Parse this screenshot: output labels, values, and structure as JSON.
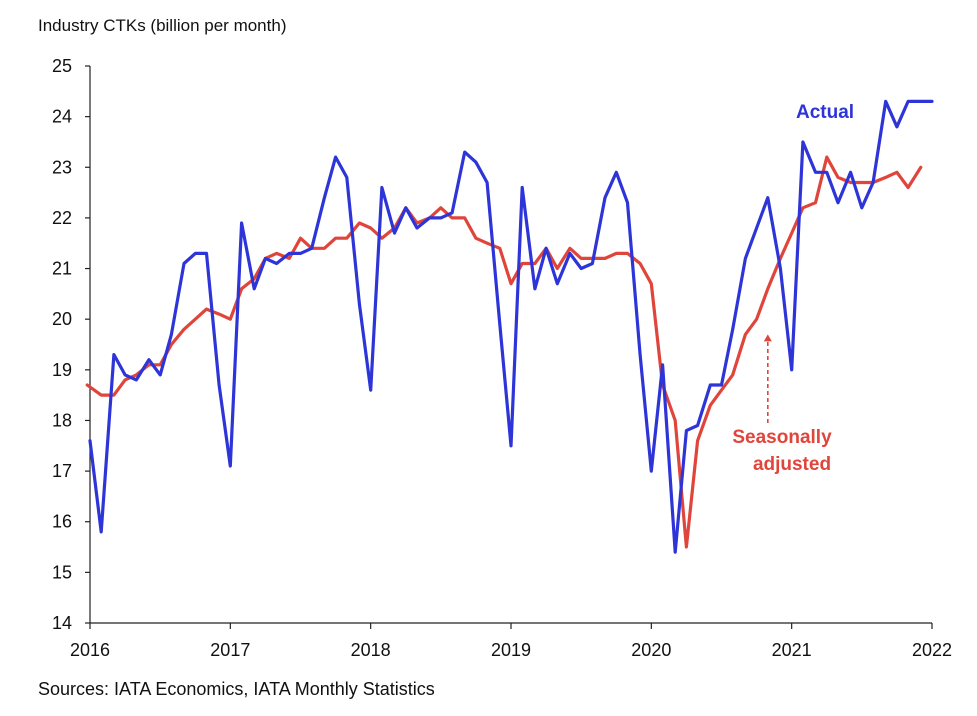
{
  "chart_data": {
    "type": "line",
    "title": "",
    "ylabel": "Industry CTKs (billion per month)",
    "xlabel": "",
    "source": "Sources: IATA Economics, IATA Monthly Statistics",
    "ylim": [
      14,
      25
    ],
    "xlim": [
      2016,
      2022
    ],
    "yticks": [
      "14",
      "15",
      "16",
      "17",
      "18",
      "19",
      "20",
      "21",
      "22",
      "23",
      "24",
      "25"
    ],
    "xticks": [
      "2016",
      "2017",
      "2018",
      "2019",
      "2020",
      "2021",
      "2022"
    ],
    "grid": false,
    "colors": {
      "actual": "#2e35d8",
      "seasonally_adjusted": "#e0453b"
    },
    "annotation": {
      "text_line1": "Seasonally",
      "text_line2": "adjusted",
      "arrow_x": 2020.83,
      "arrow_y_from": 17.95,
      "arrow_y_to": 19.7
    },
    "series": [
      {
        "name": "Actual",
        "x": [
          2016.0,
          2016.08,
          2016.17,
          2016.25,
          2016.33,
          2016.42,
          2016.5,
          2016.58,
          2016.67,
          2016.75,
          2016.83,
          2016.92,
          2017.0,
          2017.08,
          2017.17,
          2017.25,
          2017.33,
          2017.42,
          2017.5,
          2017.58,
          2017.67,
          2017.75,
          2017.83,
          2017.92,
          2018.0,
          2018.08,
          2018.17,
          2018.25,
          2018.33,
          2018.42,
          2018.5,
          2018.58,
          2018.67,
          2018.75,
          2018.83,
          2018.92,
          2019.0,
          2019.08,
          2019.17,
          2019.25,
          2019.33,
          2019.42,
          2019.5,
          2019.58,
          2019.67,
          2019.75,
          2019.83,
          2019.92,
          2020.0,
          2020.08,
          2020.17,
          2020.25,
          2020.33,
          2020.42,
          2020.5,
          2020.58,
          2020.67,
          2020.75,
          2020.83,
          2020.92,
          2021.0,
          2021.08,
          2021.17,
          2021.25,
          2021.33,
          2021.42,
          2021.5,
          2021.58,
          2021.67,
          2021.75,
          2021.83,
          2021.92,
          2022.0
        ],
        "values": [
          17.6,
          15.8,
          19.3,
          18.9,
          18.8,
          19.2,
          18.9,
          19.7,
          21.1,
          21.3,
          21.3,
          18.7,
          17.1,
          21.9,
          20.6,
          21.2,
          21.1,
          21.3,
          21.3,
          21.4,
          22.4,
          23.2,
          22.8,
          20.3,
          18.6,
          22.6,
          21.7,
          22.2,
          21.8,
          22.0,
          22.0,
          22.1,
          23.3,
          23.1,
          22.7,
          19.9,
          17.5,
          22.6,
          20.6,
          21.4,
          20.7,
          21.3,
          21.0,
          21.1,
          22.4,
          22.9,
          22.3,
          19.3,
          17.0,
          19.1,
          15.4,
          17.8,
          17.9,
          18.7,
          18.7,
          19.8,
          21.2,
          21.8,
          22.4,
          21.0,
          19.0,
          23.5,
          22.9,
          22.9,
          22.3,
          22.9,
          22.2,
          22.7,
          24.3,
          23.8,
          24.3,
          24.3,
          24.3
        ]
      },
      {
        "name": "Seasonally adjusted",
        "x": [
          2015.98,
          2016.08,
          2016.17,
          2016.25,
          2016.33,
          2016.42,
          2016.5,
          2016.58,
          2016.67,
          2016.75,
          2016.83,
          2016.92,
          2017.0,
          2017.08,
          2017.17,
          2017.25,
          2017.33,
          2017.42,
          2017.5,
          2017.58,
          2017.67,
          2017.75,
          2017.83,
          2017.92,
          2018.0,
          2018.08,
          2018.17,
          2018.25,
          2018.33,
          2018.42,
          2018.5,
          2018.58,
          2018.67,
          2018.75,
          2018.83,
          2018.92,
          2019.0,
          2019.08,
          2019.17,
          2019.25,
          2019.33,
          2019.42,
          2019.5,
          2019.58,
          2019.67,
          2019.75,
          2019.83,
          2019.92,
          2020.0,
          2020.08,
          2020.17,
          2020.25,
          2020.33,
          2020.42,
          2020.5,
          2020.58,
          2020.67,
          2020.75,
          2020.83,
          2020.92,
          2021.0,
          2021.08,
          2021.17,
          2021.25,
          2021.33,
          2021.42,
          2021.5,
          2021.58,
          2021.67,
          2021.75,
          2021.83,
          2021.92
        ],
        "values": [
          18.7,
          18.5,
          18.5,
          18.8,
          18.9,
          19.1,
          19.1,
          19.5,
          19.8,
          20.0,
          20.2,
          20.1,
          20.0,
          20.6,
          20.8,
          21.2,
          21.3,
          21.2,
          21.6,
          21.4,
          21.4,
          21.6,
          21.6,
          21.9,
          21.8,
          21.6,
          21.8,
          22.2,
          21.9,
          22.0,
          22.2,
          22.0,
          22.0,
          21.6,
          21.5,
          21.4,
          20.7,
          21.1,
          21.1,
          21.4,
          21.0,
          21.4,
          21.2,
          21.2,
          21.2,
          21.3,
          21.3,
          21.1,
          20.7,
          18.7,
          18.0,
          15.5,
          17.6,
          18.3,
          18.6,
          18.9,
          19.7,
          20.0,
          20.6,
          21.2,
          21.7,
          22.2,
          22.3,
          23.2,
          22.8,
          22.7,
          22.7,
          22.7,
          22.8,
          22.9,
          22.6,
          23.0
        ]
      }
    ]
  }
}
